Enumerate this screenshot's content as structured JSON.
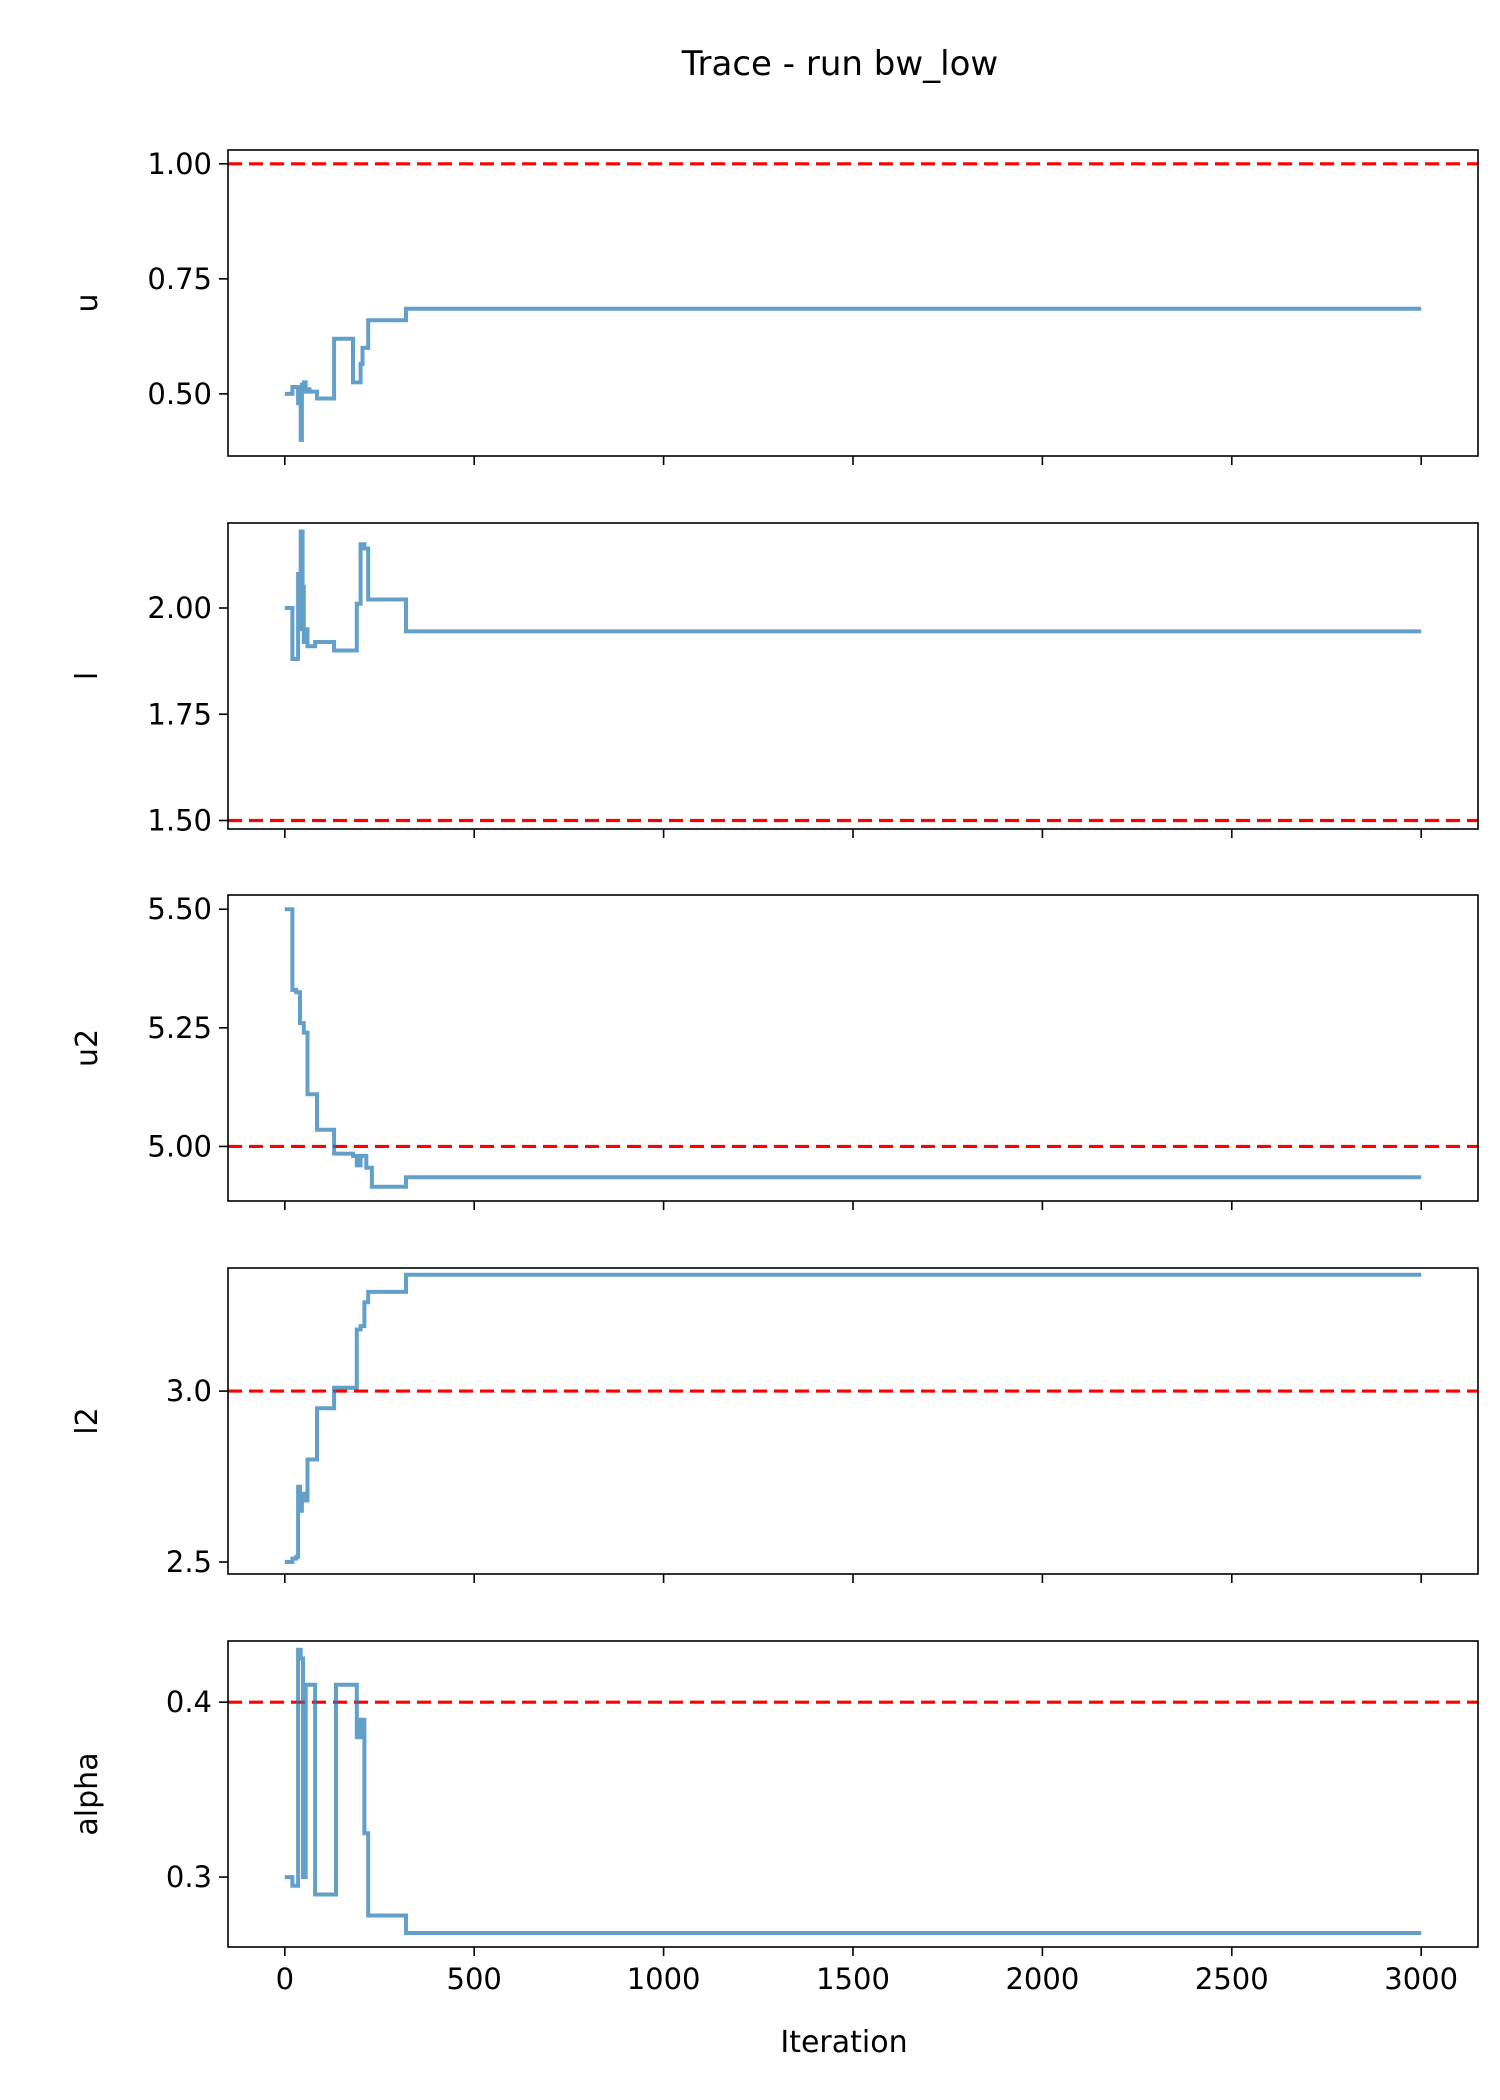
{
  "figure": {
    "title": "Trace - run bw_low",
    "xlabel": "Iteration"
  },
  "colors": {
    "trace": "#1f77b4",
    "reference": "#ff0000",
    "axes": "#000000",
    "background": "#ffffff"
  },
  "chart_data": [
    {
      "type": "line",
      "ylabel": "u",
      "xlim": [
        -150,
        3150
      ],
      "ylim": [
        0.365,
        1.03
      ],
      "yticks": [
        0.5,
        0.75,
        1.0
      ],
      "ytick_labels": [
        "0.50",
        "0.75",
        "1.00"
      ],
      "reference": 1.0,
      "series": [
        {
          "step": true,
          "x": [
            0,
            10,
            20,
            30,
            35,
            38,
            42,
            45,
            50,
            55,
            60,
            65,
            70,
            85,
            90,
            130,
            180,
            190,
            200,
            205,
            210,
            220,
            320,
            3000
          ],
          "y": [
            0.5,
            0.5,
            0.515,
            0.515,
            0.48,
            0.515,
            0.4,
            0.52,
            0.525,
            0.505,
            0.51,
            0.505,
            0.505,
            0.49,
            0.49,
            0.62,
            0.525,
            0.525,
            0.565,
            0.6,
            0.6,
            0.66,
            0.685,
            0.685
          ]
        }
      ]
    },
    {
      "type": "line",
      "ylabel": "l",
      "xlim": [
        -150,
        3150
      ],
      "ylim": [
        1.48,
        2.2
      ],
      "yticks": [
        1.5,
        1.75,
        2.0
      ],
      "ytick_labels": [
        "1.50",
        "1.75",
        "2.00"
      ],
      "reference": 1.5,
      "series": [
        {
          "step": true,
          "x": [
            0,
            10,
            20,
            30,
            35,
            38,
            42,
            47,
            50,
            55,
            60,
            65,
            80,
            130,
            190,
            200,
            210,
            220,
            320,
            3000
          ],
          "y": [
            2.0,
            2.0,
            1.88,
            1.88,
            2.08,
            1.95,
            2.18,
            2.05,
            1.92,
            1.95,
            1.91,
            1.91,
            1.92,
            1.9,
            2.01,
            2.15,
            2.14,
            2.02,
            1.945,
            1.945
          ]
        }
      ]
    },
    {
      "type": "line",
      "ylabel": "u2",
      "xlim": [
        -150,
        3150
      ],
      "ylim": [
        4.885,
        5.53
      ],
      "yticks": [
        5.0,
        5.25,
        5.5
      ],
      "ytick_labels": [
        "5.00",
        "5.25",
        "5.50"
      ],
      "reference": 5.0,
      "series": [
        {
          "step": true,
          "x": [
            0,
            10,
            20,
            30,
            40,
            50,
            60,
            70,
            85,
            130,
            180,
            190,
            200,
            215,
            230,
            320,
            3000
          ],
          "y": [
            5.5,
            5.5,
            5.33,
            5.325,
            5.26,
            5.24,
            5.11,
            5.11,
            5.035,
            4.985,
            4.98,
            4.96,
            4.98,
            4.955,
            4.915,
            4.935,
            4.935
          ]
        }
      ]
    },
    {
      "type": "line",
      "ylabel": "l2",
      "xlim": [
        -150,
        3150
      ],
      "ylim": [
        2.465,
        3.36
      ],
      "yticks": [
        2.5,
        3.0
      ],
      "ytick_labels": [
        "2.5",
        "3.0"
      ],
      "reference": 3.0,
      "series": [
        {
          "step": true,
          "x": [
            0,
            10,
            20,
            30,
            35,
            40,
            45,
            55,
            60,
            70,
            85,
            130,
            180,
            190,
            200,
            210,
            220,
            320,
            3000
          ],
          "y": [
            2.5,
            2.5,
            2.51,
            2.515,
            2.72,
            2.65,
            2.7,
            2.68,
            2.8,
            2.8,
            2.95,
            3.01,
            3.01,
            3.18,
            3.19,
            3.26,
            3.29,
            3.34,
            3.34
          ]
        }
      ]
    },
    {
      "type": "line",
      "ylabel": "alpha",
      "xlim": [
        -150,
        3150
      ],
      "ylim": [
        0.26,
        0.435
      ],
      "yticks": [
        0.3,
        0.4
      ],
      "ytick_labels": [
        "0.3",
        "0.4"
      ],
      "reference": 0.4,
      "series": [
        {
          "step": true,
          "x": [
            0,
            10,
            20,
            30,
            35,
            42,
            48,
            55,
            65,
            80,
            85,
            135,
            190,
            200,
            210,
            220,
            320,
            3000
          ],
          "y": [
            0.3,
            0.3,
            0.295,
            0.295,
            0.43,
            0.425,
            0.3,
            0.41,
            0.41,
            0.29,
            0.29,
            0.41,
            0.38,
            0.39,
            0.325,
            0.278,
            0.268,
            0.268
          ]
        }
      ]
    }
  ],
  "xaxis": {
    "ticks": [
      0,
      500,
      1000,
      1500,
      2000,
      2500,
      3000
    ],
    "tick_labels": [
      "0",
      "500",
      "1000",
      "1500",
      "2000",
      "2500",
      "3000"
    ]
  }
}
